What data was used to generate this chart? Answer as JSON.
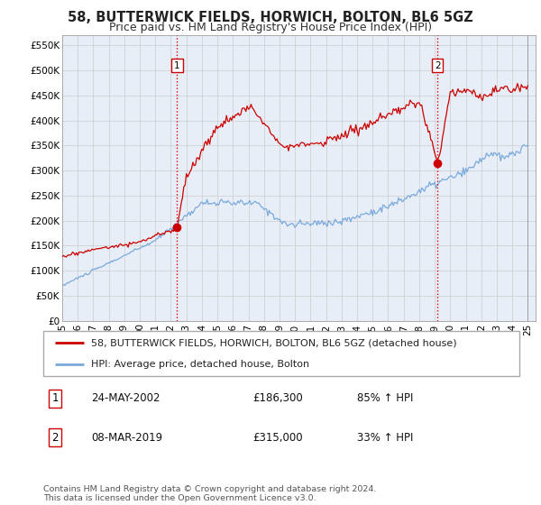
{
  "title": "58, BUTTERWICK FIELDS, HORWICH, BOLTON, BL6 5GZ",
  "subtitle": "Price paid vs. HM Land Registry's House Price Index (HPI)",
  "ylabel_ticks": [
    "£0",
    "£50K",
    "£100K",
    "£150K",
    "£200K",
    "£250K",
    "£300K",
    "£350K",
    "£400K",
    "£450K",
    "£500K",
    "£550K"
  ],
  "ytick_values": [
    0,
    50000,
    100000,
    150000,
    200000,
    250000,
    300000,
    350000,
    400000,
    450000,
    500000,
    550000
  ],
  "ylim": [
    0,
    570000
  ],
  "xlim_start": 1995.0,
  "xlim_end": 2025.5,
  "xtick_years": [
    1995,
    1996,
    1997,
    1998,
    1999,
    2000,
    2001,
    2002,
    2003,
    2004,
    2005,
    2006,
    2007,
    2008,
    2009,
    2010,
    2011,
    2012,
    2013,
    2014,
    2015,
    2016,
    2017,
    2018,
    2019,
    2020,
    2021,
    2022,
    2023,
    2024,
    2025
  ],
  "transaction1_x": 2002.4,
  "transaction1_y": 186300,
  "transaction1_label": "1",
  "transaction2_x": 2019.18,
  "transaction2_y": 315000,
  "transaction2_label": "2",
  "vline1_x": 2002.4,
  "vline2_x": 2019.18,
  "vline_color": "#dd0000",
  "red_line_color": "#cc0000",
  "blue_line_color": "#7aaadd",
  "chart_bg_color": "#e8eef8",
  "legend_label1": "58, BUTTERWICK FIELDS, HORWICH, BOLTON, BL6 5GZ (detached house)",
  "legend_label2": "HPI: Average price, detached house, Bolton",
  "table_row1": [
    "1",
    "24-MAY-2002",
    "£186,300",
    "85% ↑ HPI"
  ],
  "table_row2": [
    "2",
    "08-MAR-2019",
    "£315,000",
    "33% ↑ HPI"
  ],
  "footer": "Contains HM Land Registry data © Crown copyright and database right 2024.\nThis data is licensed under the Open Government Licence v3.0.",
  "background_color": "#ffffff",
  "grid_color": "#cccccc"
}
